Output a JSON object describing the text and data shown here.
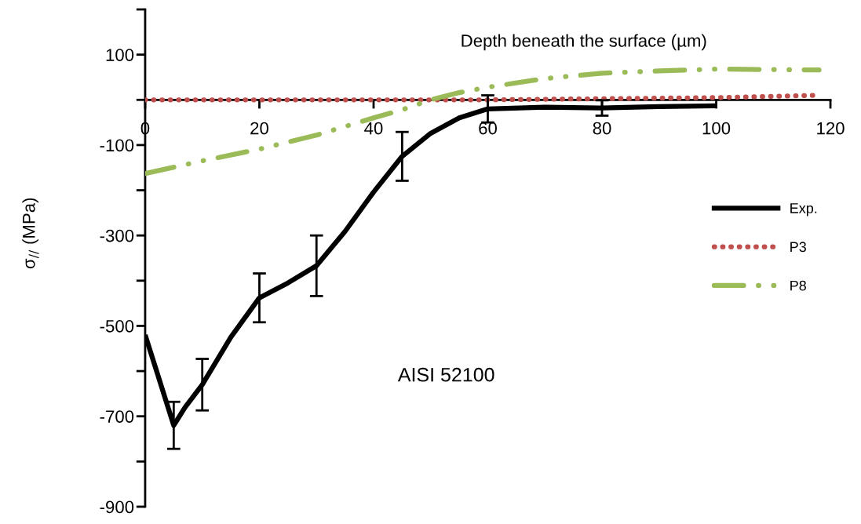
{
  "chart_data": {
    "type": "line",
    "xlabel": "Depth beneath the surface (µm)",
    "ylabel": "σ$_{//}$ (MPa)",
    "annotations": [
      "AISI 52100"
    ],
    "xlim": [
      0,
      120
    ],
    "xticks": [
      0,
      20,
      40,
      60,
      80,
      100,
      120
    ],
    "ylim": [
      -900,
      200
    ],
    "yticks": [
      {
        "value": 200,
        "label": null
      },
      100,
      {
        "value": 0,
        "label": null
      },
      -100,
      {
        "value": -200,
        "label": null
      },
      -300,
      {
        "value": -400,
        "label": null
      },
      -500,
      {
        "value": -600,
        "label": null
      },
      -700,
      {
        "value": -800,
        "label": null
      },
      -900
    ],
    "legend": "right",
    "grid": false,
    "series": [
      {
        "name": "Exp.",
        "color": "#000000",
        "line_style": "solid",
        "x": [
          0,
          2,
          5,
          7,
          10,
          15,
          20,
          25,
          30,
          35,
          40,
          45,
          50,
          55,
          60,
          70,
          80,
          90,
          100
        ],
        "values": [
          -520,
          -600,
          -720,
          -680,
          -630,
          -525,
          -438,
          -405,
          -367,
          -291,
          -204,
          -125,
          -74,
          -40,
          -20,
          -16,
          -18,
          -15,
          -13
        ],
        "errors": [
          null,
          null,
          52,
          null,
          57,
          null,
          54,
          null,
          67,
          null,
          null,
          54,
          null,
          null,
          30,
          null,
          17,
          null,
          null
        ]
      },
      {
        "name": "P3",
        "color": "#c0504d",
        "line_style": "dotted",
        "x": [
          0,
          60,
          100,
          118
        ],
        "values": [
          0,
          0,
          5,
          10
        ]
      },
      {
        "name": "P8",
        "color": "#9bbb59",
        "line_style": "dashdot",
        "x": [
          0,
          10,
          20,
          30,
          40,
          45,
          50,
          55,
          60,
          70,
          80,
          90,
          100,
          118
        ],
        "values": [
          -163,
          -135,
          -109,
          -78,
          -40,
          -22,
          0,
          16,
          28,
          47,
          59,
          64,
          68,
          66
        ]
      }
    ]
  }
}
